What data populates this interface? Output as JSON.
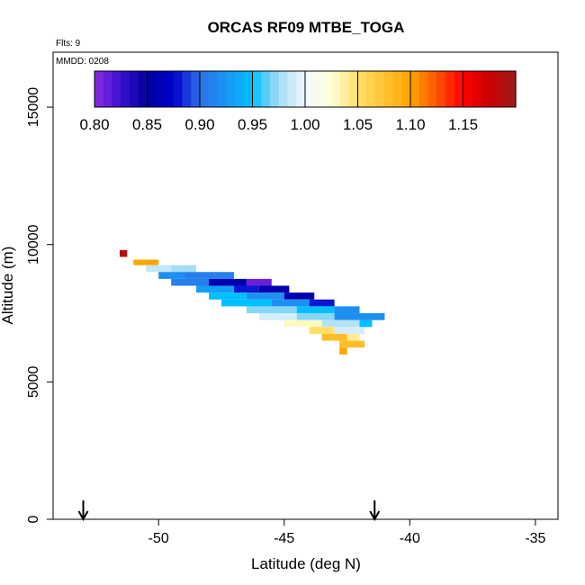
{
  "chart_data": {
    "type": "heatmap",
    "title": "ORCAS RF09 MTBE_TOGA",
    "flights_note": "Flts: 9",
    "date_note": "MMDD: 0208",
    "xlabel": "Latitude (deg N)",
    "ylabel": "Altitude (m)",
    "xlim": [
      -54.2,
      -34.1
    ],
    "ylim": [
      0,
      17000
    ],
    "x_ticks": [
      -50,
      -45,
      -40,
      -35
    ],
    "x_tick_labels": [
      "-50",
      "-45",
      "-40",
      "-35"
    ],
    "y_ticks": [
      0,
      5000,
      10000,
      15000
    ],
    "y_tick_labels": [
      "0",
      "5000",
      "10000",
      "15000"
    ],
    "grid": false,
    "colorbar": {
      "placement": "top-inside",
      "range": [
        0.8,
        1.2
      ],
      "tick_values": [
        0.8,
        0.85,
        0.9,
        0.95,
        1.0,
        1.05,
        1.1,
        1.15
      ],
      "tick_labels": [
        "0.80",
        "0.85",
        "0.90",
        "0.95",
        "1.00",
        "1.05",
        "1.10",
        "1.15"
      ],
      "color_stops": [
        {
          "v": 0.8,
          "c": "#8a2be2"
        },
        {
          "v": 0.825,
          "c": "#3a10d0"
        },
        {
          "v": 0.85,
          "c": "#00009a"
        },
        {
          "v": 0.875,
          "c": "#0000cd"
        },
        {
          "v": 0.9,
          "c": "#2f6fe8"
        },
        {
          "v": 0.95,
          "c": "#00bfff"
        },
        {
          "v": 0.975,
          "c": "#a6dcf5"
        },
        {
          "v": 1.0,
          "c": "#f0f8ff"
        },
        {
          "v": 1.025,
          "c": "#ffffd8"
        },
        {
          "v": 1.05,
          "c": "#ffe066"
        },
        {
          "v": 1.1,
          "c": "#ffa500"
        },
        {
          "v": 1.15,
          "c": "#ff0000"
        },
        {
          "v": 1.175,
          "c": "#cc0000"
        },
        {
          "v": 1.2,
          "c": "#9b1c1c"
        }
      ]
    },
    "arrows_lat": [
      -53,
      -41.4
    ],
    "cells": [
      {
        "lat0": -51.55,
        "lat1": -51.25,
        "alt0": 9550,
        "alt1": 9800,
        "value": 1.19
      },
      {
        "lat0": -51.0,
        "lat1": -50.0,
        "alt0": 9250,
        "alt1": 9450,
        "value": 1.1
      },
      {
        "lat0": -50.5,
        "lat1": -49.5,
        "alt0": 9000,
        "alt1": 9250,
        "value": 0.985
      },
      {
        "lat0": -49.5,
        "lat1": -48.5,
        "alt0": 9000,
        "alt1": 9250,
        "value": 0.975
      },
      {
        "lat0": -50.0,
        "lat1": -49.0,
        "alt0": 8750,
        "alt1": 9000,
        "value": 0.92
      },
      {
        "lat0": -49.0,
        "lat1": -47.0,
        "alt0": 8750,
        "alt1": 9000,
        "value": 0.91
      },
      {
        "lat0": -49.5,
        "lat1": -48.0,
        "alt0": 8500,
        "alt1": 8750,
        "value": 0.91
      },
      {
        "lat0": -48.0,
        "lat1": -46.5,
        "alt0": 8500,
        "alt1": 8750,
        "value": 0.86
      },
      {
        "lat0": -46.5,
        "lat1": -45.5,
        "alt0": 8500,
        "alt1": 8750,
        "value": 0.81
      },
      {
        "lat0": -48.5,
        "lat1": -47.0,
        "alt0": 8250,
        "alt1": 8500,
        "value": 0.93
      },
      {
        "lat0": -47.0,
        "lat1": -46.0,
        "alt0": 8250,
        "alt1": 8500,
        "value": 0.88
      },
      {
        "lat0": -46.0,
        "lat1": -44.8,
        "alt0": 8250,
        "alt1": 8500,
        "value": 0.86
      },
      {
        "lat0": -48.0,
        "lat1": -46.5,
        "alt0": 8000,
        "alt1": 8250,
        "value": 0.95
      },
      {
        "lat0": -46.5,
        "lat1": -45.0,
        "alt0": 8000,
        "alt1": 8250,
        "value": 0.92
      },
      {
        "lat0": -45.0,
        "lat1": -43.8,
        "alt0": 8000,
        "alt1": 8250,
        "value": 0.86
      },
      {
        "lat0": -47.5,
        "lat1": -45.5,
        "alt0": 7750,
        "alt1": 8000,
        "value": 0.95
      },
      {
        "lat0": -45.5,
        "lat1": -44.0,
        "alt0": 7750,
        "alt1": 8000,
        "value": 0.92
      },
      {
        "lat0": -44.0,
        "lat1": -43.0,
        "alt0": 7750,
        "alt1": 8000,
        "value": 0.88
      },
      {
        "lat0": -46.5,
        "lat1": -44.5,
        "alt0": 7500,
        "alt1": 7750,
        "value": 0.97
      },
      {
        "lat0": -44.5,
        "lat1": -43.0,
        "alt0": 7500,
        "alt1": 7750,
        "value": 0.95
      },
      {
        "lat0": -43.0,
        "lat1": -42.0,
        "alt0": 7500,
        "alt1": 7750,
        "value": 0.92
      },
      {
        "lat0": -46.0,
        "lat1": -44.5,
        "alt0": 7250,
        "alt1": 7500,
        "value": 0.99
      },
      {
        "lat0": -44.5,
        "lat1": -43.0,
        "alt0": 7250,
        "alt1": 7500,
        "value": 0.97
      },
      {
        "lat0": -43.0,
        "lat1": -41.0,
        "alt0": 7250,
        "alt1": 7500,
        "value": 0.92
      },
      {
        "lat0": -45.0,
        "lat1": -43.5,
        "alt0": 7000,
        "alt1": 7250,
        "value": 1.03
      },
      {
        "lat0": -43.5,
        "lat1": -42.0,
        "alt0": 7000,
        "alt1": 7250,
        "value": 0.98
      },
      {
        "lat0": -42.0,
        "lat1": -41.5,
        "alt0": 7000,
        "alt1": 7250,
        "value": 0.95
      },
      {
        "lat0": -44.0,
        "lat1": -43.0,
        "alt0": 6750,
        "alt1": 7000,
        "value": 1.05
      },
      {
        "lat0": -43.0,
        "lat1": -41.8,
        "alt0": 6750,
        "alt1": 7000,
        "value": 0.99
      },
      {
        "lat0": -43.5,
        "lat1": -42.5,
        "alt0": 6500,
        "alt1": 6750,
        "value": 1.08
      },
      {
        "lat0": -42.5,
        "lat1": -42.0,
        "alt0": 6500,
        "alt1": 6750,
        "value": 1.04
      },
      {
        "lat0": -42.8,
        "lat1": -41.8,
        "alt0": 6250,
        "alt1": 6500,
        "value": 1.08
      },
      {
        "lat0": -42.8,
        "lat1": -42.5,
        "alt0": 6000,
        "alt1": 6250,
        "value": 1.1
      }
    ]
  }
}
